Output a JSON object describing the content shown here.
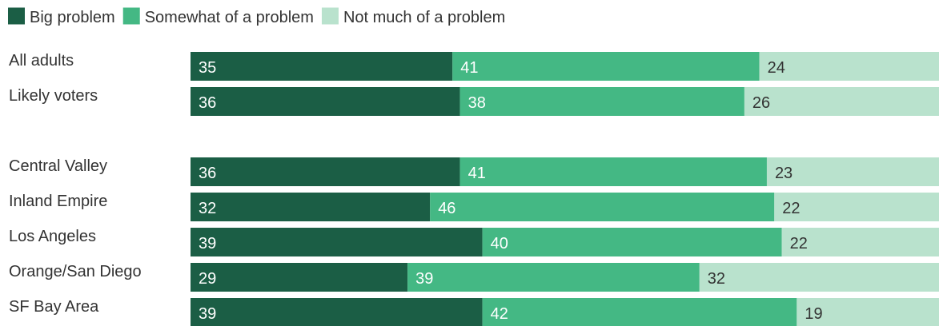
{
  "chart_data": {
    "type": "bar",
    "orientation": "horizontal",
    "stacked": true,
    "normalized": true,
    "legend_position": "top-left",
    "xlim": [
      0,
      100
    ],
    "categories": [
      "All adults",
      "Likely voters",
      "Central Valley",
      "Inland Empire",
      "Los Angeles",
      "Orange/San Diego",
      "SF Bay Area"
    ],
    "groups": [
      [
        "All adults",
        "Likely voters"
      ],
      [
        "Central Valley",
        "Inland Empire",
        "Los Angeles",
        "Orange/San Diego",
        "SF Bay Area"
      ]
    ],
    "series": [
      {
        "name": "Big problem",
        "color": "#1b5e45",
        "label_color": "#ffffff",
        "values": [
          35,
          36,
          36,
          32,
          39,
          29,
          39
        ]
      },
      {
        "name": "Somewhat of a problem",
        "color": "#44b884",
        "label_color": "#ffffff",
        "values": [
          41,
          38,
          41,
          46,
          40,
          39,
          42
        ]
      },
      {
        "name": "Not much of a problem",
        "color": "#b9e2cd",
        "label_color": "#333333",
        "values": [
          24,
          26,
          23,
          22,
          22,
          32,
          19
        ]
      }
    ]
  }
}
